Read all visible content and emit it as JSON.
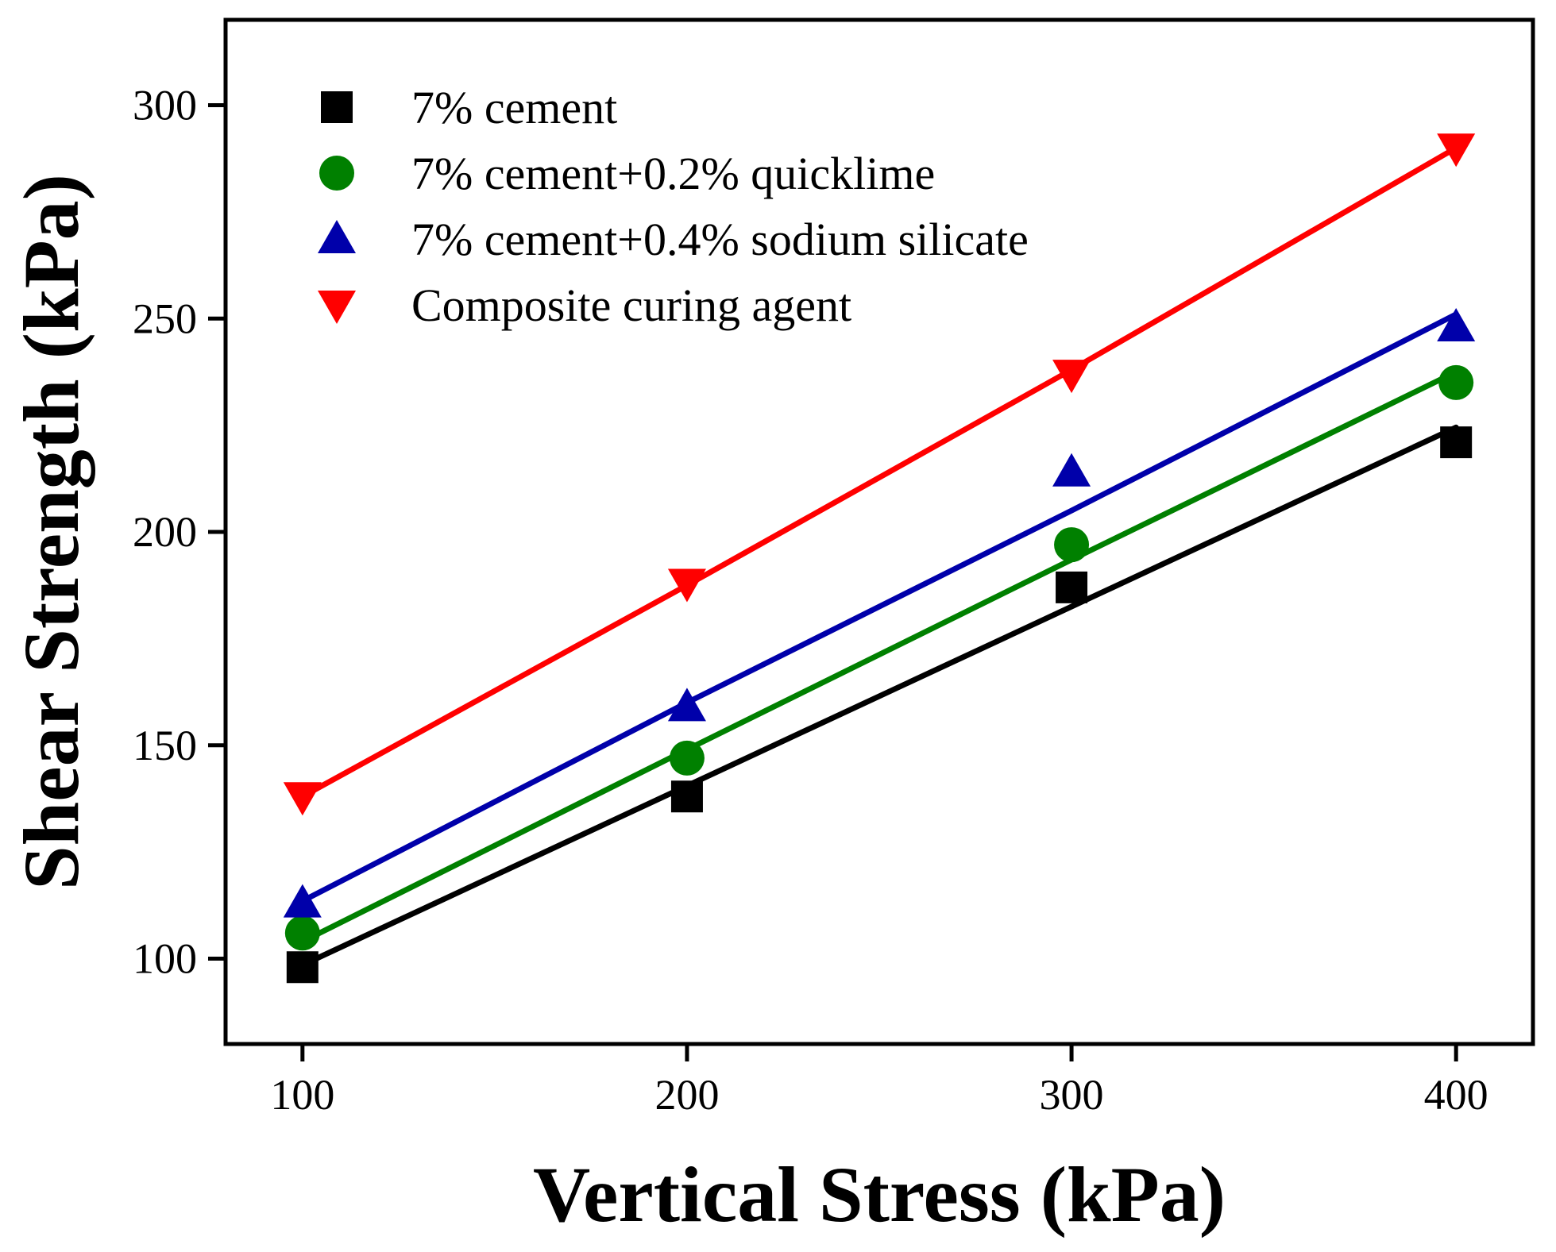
{
  "chart_data": {
    "type": "scatter",
    "title": "",
    "xlabel": "Vertical Stress (kPa)",
    "ylabel": "Shear Strength (kPa)",
    "xlim": [
      80,
      420
    ],
    "ylim": [
      80,
      320
    ],
    "xticks": [
      100,
      200,
      300,
      400
    ],
    "yticks": [
      100,
      150,
      200,
      250,
      300
    ],
    "xtick_labels": [
      "100",
      "200",
      "300",
      "400"
    ],
    "ytick_labels": [
      "100",
      "150",
      "200",
      "250",
      "300"
    ],
    "x": [
      100,
      200,
      300,
      400
    ],
    "legend_position": "top-left",
    "grid": false,
    "series": [
      {
        "name": "7% cement",
        "marker": "square",
        "color": "#000000",
        "values": [
          98,
          138,
          187,
          221
        ],
        "fit": [
          98.5,
          140.5,
          182.5,
          224.5
        ]
      },
      {
        "name": "7% cement+0.2% quicklime",
        "marker": "circle",
        "color": "#008000",
        "values": [
          106,
          147,
          197,
          235
        ],
        "fit": [
          104,
          149,
          193.5,
          237.5
        ]
      },
      {
        "name": "7% cement+0.4% sodium silicate",
        "marker": "triangle-up",
        "color": "#0000AA",
        "values": [
          113,
          159,
          214,
          248
        ],
        "fit": [
          113.5,
          160,
          205,
          251
        ]
      },
      {
        "name": "Composite curing agent",
        "marker": "triangle-down",
        "color": "#FF0000",
        "values": [
          138,
          188,
          237,
          290
        ],
        "fit": [
          138,
          187.5,
          238,
          290
        ]
      }
    ]
  }
}
